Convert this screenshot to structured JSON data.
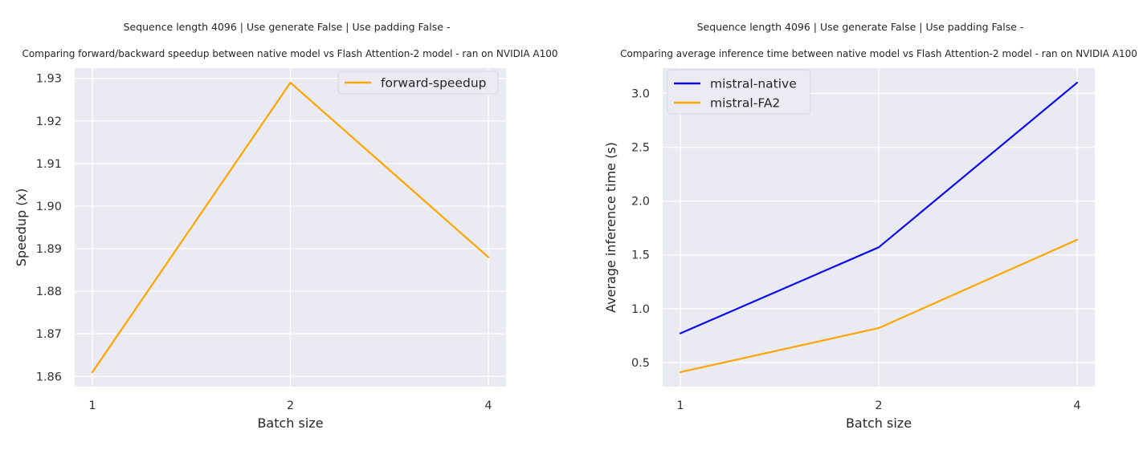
{
  "theme": {
    "figure_background": "#ffffff",
    "plot_background": "#eaeaf2",
    "gridline": "#ffffff",
    "text": "#262626",
    "legend_background": "#ecebf4",
    "legend_border": "#d5d5de"
  },
  "chart_data": [
    {
      "type": "line",
      "suptitle": "Sequence length 4096 | Use generate False | Use padding False -",
      "title": "Comparing forward/backward speedup between native model vs Flash Attention-2 model - ran on NVIDIA A100",
      "xlabel": "Batch size",
      "ylabel": "Speedup (x)",
      "x_values": [
        1,
        2,
        4
      ],
      "categories": [
        "1",
        "2",
        "4"
      ],
      "x_spacing": "equal",
      "ylim": [
        1.8576,
        1.9324
      ],
      "ytick_values": [
        1.86,
        1.87,
        1.88,
        1.89,
        1.9,
        1.91,
        1.92,
        1.93
      ],
      "ytick_labels": [
        "1.86",
        "1.87",
        "1.88",
        "1.89",
        "1.90",
        "1.91",
        "1.92",
        "1.93"
      ],
      "grid": true,
      "legend_position": "upper right",
      "series": [
        {
          "name": "forward-speedup",
          "color": "#ffa500",
          "values": [
            1.861,
            1.929,
            1.888
          ]
        }
      ]
    },
    {
      "type": "line",
      "suptitle": "Sequence length 4096 | Use generate False | Use padding False -",
      "title": "Comparing average inference time between native model vs Flash Attention-2 model - ran on NVIDIA A100",
      "xlabel": "Batch size",
      "ylabel": "Average inference time (s)",
      "x_values": [
        1,
        2,
        4
      ],
      "categories": [
        "1",
        "2",
        "4"
      ],
      "x_spacing": "equal",
      "ylim": [
        0.2755,
        3.2345
      ],
      "ytick_values": [
        0.5,
        1.0,
        1.5,
        2.0,
        2.5,
        3.0
      ],
      "ytick_labels": [
        "0.5",
        "1.0",
        "1.5",
        "2.0",
        "2.5",
        "3.0"
      ],
      "grid": true,
      "legend_position": "upper left",
      "series": [
        {
          "name": "mistral-native",
          "color": "#0b0bf0",
          "values": [
            0.77,
            1.57,
            3.1
          ]
        },
        {
          "name": "mistral-FA2",
          "color": "#ffa500",
          "values": [
            0.41,
            0.82,
            1.64
          ]
        }
      ]
    }
  ]
}
